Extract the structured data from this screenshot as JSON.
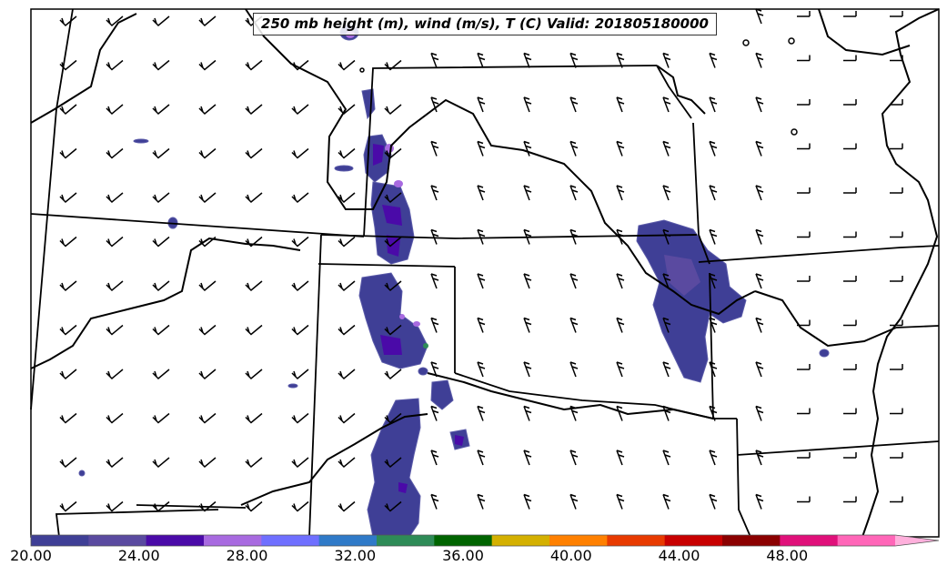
{
  "title": "250 mb height (m), wind (m/s), T (C) Valid: 201805180000",
  "colorbar": {
    "tick_labels": [
      "20.00",
      "24.00",
      "28.00",
      "32.00",
      "36.00",
      "40.00",
      "44.00",
      "48.00"
    ],
    "min": 20,
    "max": 52,
    "extend": "max",
    "colors": [
      "#3f3f96",
      "#5a4aa0",
      "#4a0aa8",
      "#a86ae0",
      "#6f6fff",
      "#2f7ac8",
      "#2e8b57",
      "#006400",
      "#d4b000",
      "#ff8000",
      "#e83a00",
      "#c80000",
      "#8b0000",
      "#e0107a",
      "#ff66b8",
      "#ffb0dc"
    ]
  },
  "map": {
    "region": "Southern Rocky Mountains / Central Plains, USA",
    "fill_color": "#3f3f96",
    "accent_fill": "#4a0aa8",
    "light_fill": "#a86ae0"
  }
}
